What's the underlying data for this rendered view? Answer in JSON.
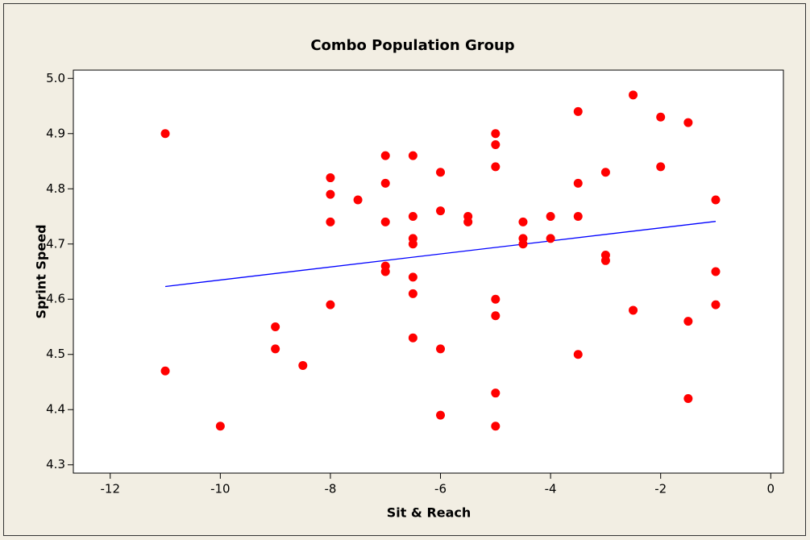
{
  "chart_data": {
    "type": "scatter",
    "title": "Combo Population Group",
    "xlabel": "Sit & Reach",
    "ylabel": "Sprint Speed",
    "x": [
      -11,
      -11,
      -10,
      -9,
      -9,
      -8.5,
      -8,
      -8,
      -8,
      -8,
      -7.5,
      -7,
      -7,
      -7,
      -7,
      -7,
      -6.5,
      -6.5,
      -6.5,
      -6.5,
      -6.5,
      -6.5,
      -6.5,
      -6,
      -6,
      -6,
      -6,
      -5.5,
      -5.5,
      -5,
      -5,
      -5,
      -5,
      -5,
      -5,
      -5,
      -4.5,
      -4.5,
      -4.5,
      -4,
      -4,
      -3.5,
      -3.5,
      -3.5,
      -3.5,
      -3,
      -3,
      -3,
      -2.5,
      -2.5,
      -2,
      -2,
      -1.5,
      -1.5,
      -1.5,
      -1,
      -1,
      -1
    ],
    "values": [
      4.9,
      4.47,
      4.37,
      4.55,
      4.51,
      4.48,
      4.82,
      4.79,
      4.74,
      4.59,
      4.78,
      4.86,
      4.81,
      4.74,
      4.66,
      4.65,
      4.86,
      4.75,
      4.71,
      4.7,
      4.64,
      4.61,
      4.53,
      4.83,
      4.76,
      4.51,
      4.39,
      4.75,
      4.74,
      4.9,
      4.88,
      4.84,
      4.6,
      4.57,
      4.43,
      4.37,
      4.74,
      4.71,
      4.7,
      4.75,
      4.71,
      4.94,
      4.81,
      4.75,
      4.5,
      4.83,
      4.68,
      4.67,
      4.97,
      4.58,
      4.93,
      4.84,
      4.92,
      4.56,
      4.42,
      4.78,
      4.65,
      4.59
    ],
    "color": "#ff0000",
    "fit_line": {
      "x": [
        -11,
        -1
      ],
      "values": [
        4.623,
        4.741
      ],
      "color": "#0000ff"
    },
    "xlim": [
      -12.67,
      0.23
    ],
    "ylim": [
      4.285,
      5.015
    ],
    "xticks": [
      -12,
      -10,
      -8,
      -6,
      -4,
      -2,
      0
    ],
    "yticks": [
      4.3,
      4.4,
      4.5,
      4.6,
      4.7,
      4.8,
      4.9,
      {
        "value": 5,
        "label": "5.0"
      }
    ]
  }
}
